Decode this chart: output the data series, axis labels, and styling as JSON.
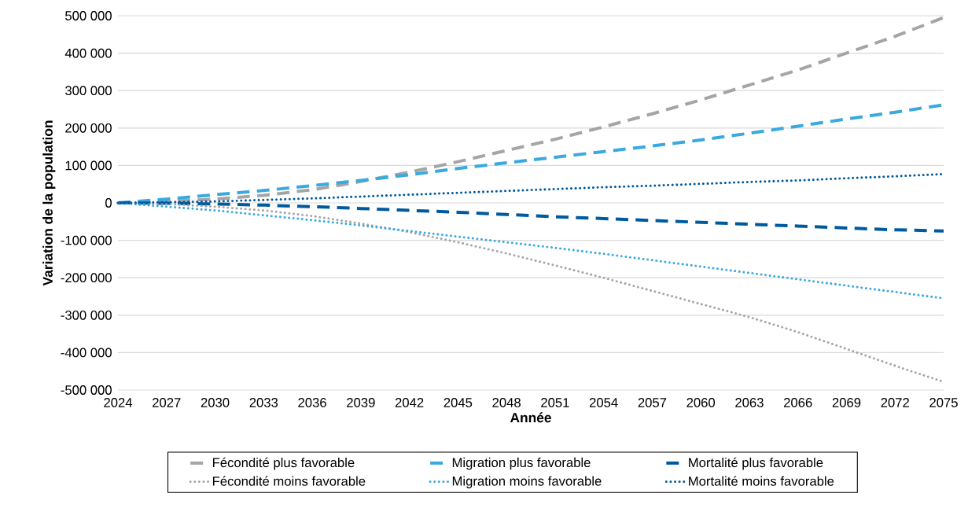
{
  "chart_data": {
    "type": "line",
    "xlabel": "Année",
    "ylabel": "Variation de la population",
    "x": [
      2024,
      2027,
      2030,
      2033,
      2036,
      2039,
      2042,
      2045,
      2048,
      2051,
      2054,
      2057,
      2060,
      2063,
      2066,
      2069,
      2072,
      2075
    ],
    "xlim": [
      2024,
      2075
    ],
    "xticks": [
      2024,
      2027,
      2030,
      2033,
      2036,
      2039,
      2042,
      2045,
      2048,
      2051,
      2054,
      2057,
      2060,
      2063,
      2066,
      2069,
      2072,
      2075
    ],
    "ylim": [
      -500000,
      500000
    ],
    "yticks": [
      {
        "value": -500000,
        "label": "-500 000"
      },
      {
        "value": -400000,
        "label": "-400 000"
      },
      {
        "value": -300000,
        "label": "-300 000"
      },
      {
        "value": -200000,
        "label": "-200 000"
      },
      {
        "value": -100000,
        "label": "-100 000"
      },
      {
        "value": 0,
        "label": "0"
      },
      {
        "value": 100000,
        "label": "100 000"
      },
      {
        "value": 200000,
        "label": "200 000"
      },
      {
        "value": 300000,
        "label": "300 000"
      },
      {
        "value": 400000,
        "label": "400 000"
      },
      {
        "value": 500000,
        "label": "500 000"
      }
    ],
    "grid": "y",
    "legend": "bottom",
    "marker": "none",
    "series": [
      {
        "name": "Fécondité plus favorable",
        "color": "#a5a5a5",
        "line_style": "dashed",
        "values": [
          0,
          4000,
          10000,
          20000,
          35000,
          57000,
          82000,
          110000,
          140000,
          170000,
          203000,
          238000,
          275000,
          315000,
          355000,
          400000,
          445000,
          495000
        ]
      },
      {
        "name": "Migration plus favorable",
        "color": "#3aa9e0",
        "line_style": "dashed",
        "values": [
          0,
          10000,
          22000,
          33000,
          46000,
          60000,
          75000,
          92000,
          107000,
          122000,
          137000,
          152000,
          168000,
          186000,
          205000,
          224000,
          242000,
          262000
        ]
      },
      {
        "name": "Mortalité plus favorable",
        "color": "#005a9e",
        "line_style": "dashed",
        "values": [
          0,
          -1000,
          -3000,
          -6000,
          -10000,
          -15000,
          -20000,
          -25000,
          -31000,
          -37000,
          -42000,
          -47000,
          -52000,
          -57000,
          -62000,
          -67000,
          -72000,
          -75000
        ]
      },
      {
        "name": "Fécondité moins favorable",
        "color": "#a5a5a5",
        "line_style": "dotted",
        "values": [
          0,
          -3000,
          -10000,
          -20000,
          -35000,
          -55000,
          -78000,
          -105000,
          -135000,
          -167000,
          -200000,
          -235000,
          -270000,
          -305000,
          -345000,
          -390000,
          -435000,
          -478000
        ]
      },
      {
        "name": "Migration moins favorable",
        "color": "#3aa9e0",
        "line_style": "dotted",
        "values": [
          0,
          -10000,
          -20000,
          -33000,
          -46000,
          -60000,
          -75000,
          -90000,
          -105000,
          -120000,
          -136000,
          -153000,
          -170000,
          -187000,
          -204000,
          -221000,
          -238000,
          -255000
        ]
      },
      {
        "name": "Mortalité moins favorable",
        "color": "#005a9e",
        "line_style": "dotted",
        "values": [
          0,
          2000,
          4000,
          8000,
          12000,
          17000,
          22000,
          27000,
          32000,
          37000,
          42000,
          46000,
          51000,
          56000,
          60000,
          66000,
          71000,
          77000
        ]
      }
    ]
  }
}
